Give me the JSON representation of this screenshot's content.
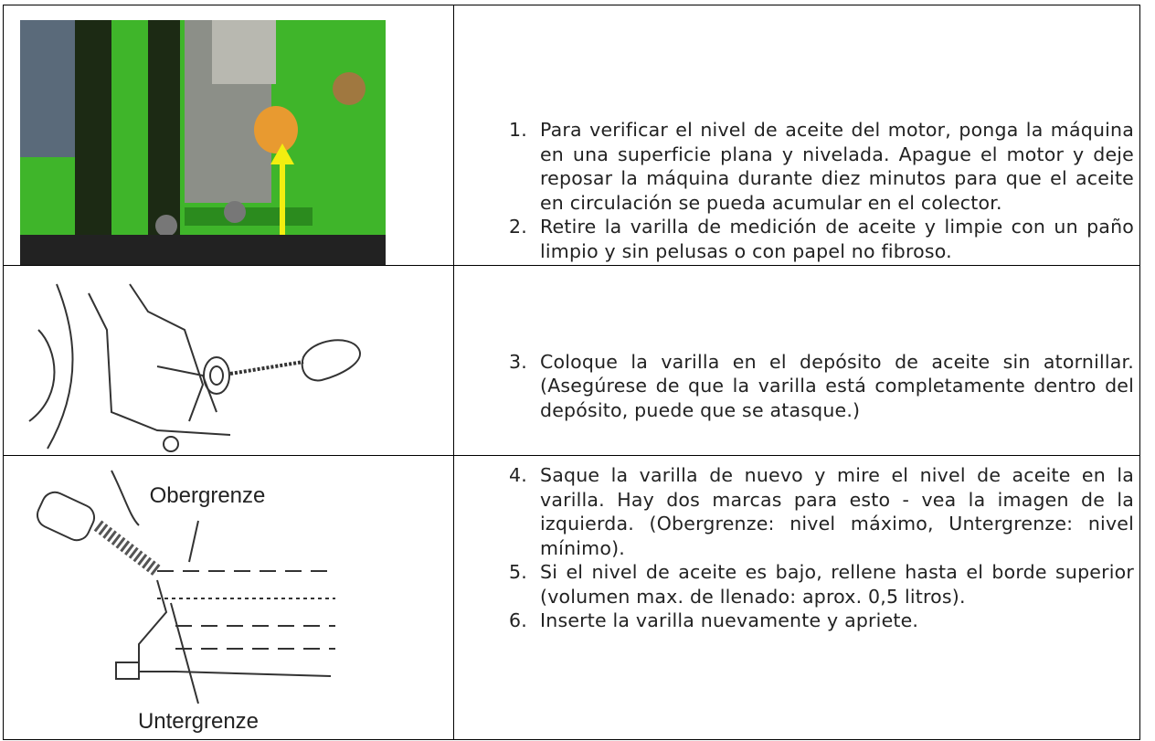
{
  "table": {
    "rows": [
      {
        "items": [
          {
            "number": "1.",
            "text": "Para verificar el nivel de aceite del motor, ponga la máquina en una superficie plana y nivelada. Apague el motor y deje reposar la máquina durante diez minutos para que el aceite en circulación se pueda acumular en el colector."
          },
          {
            "number": "2.",
            "text": "Retire la varilla de medición de aceite y limpie con un paño limpio y sin pelusas o con papel no fibroso."
          }
        ]
      },
      {
        "items": [
          {
            "number": "3.",
            "text": "Coloque la varilla en el depósito de aceite sin atornillar. (Asegúrese de que la varilla está completamente dentro del depósito, puede que se atasque.)"
          }
        ]
      },
      {
        "image_labels": [
          "Obergrenze",
          "Untergrenze"
        ],
        "items": [
          {
            "number": "4.",
            "text": "Saque la varilla de nuevo y mire el nivel de aceite en la varilla. Hay dos marcas para esto - vea la imagen de la izquierda. (Obergrenze: nivel máximo, Untergrenze: nivel mínimo)."
          },
          {
            "number": "5.",
            "text": "Si el nivel de aceite es bajo, rellene hasta el borde superior (volumen max. de llenado: aprox. 0,5 litros)."
          },
          {
            "number": "6.",
            "text": "Inserte la varilla nuevamente y apriete."
          }
        ]
      }
    ]
  }
}
